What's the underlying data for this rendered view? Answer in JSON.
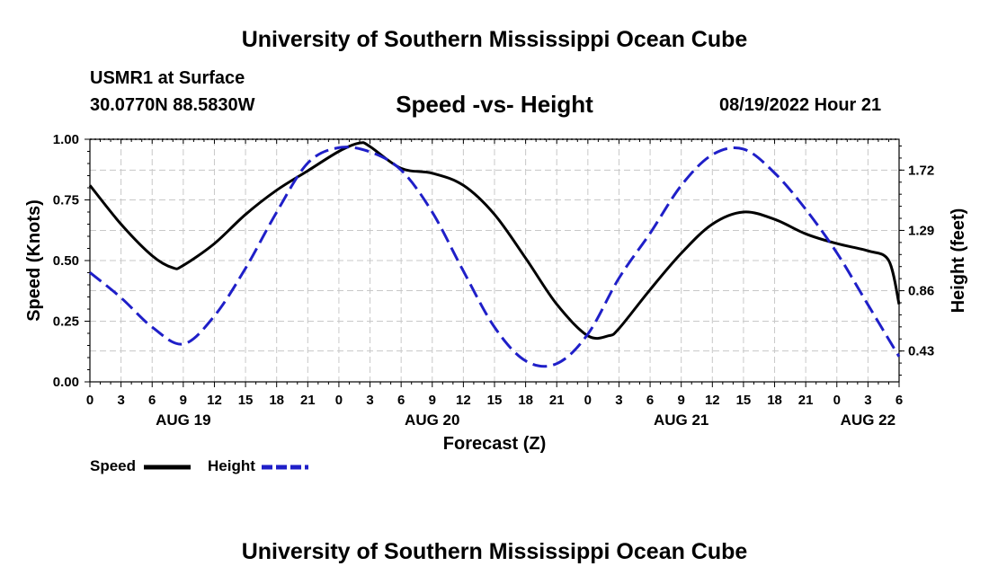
{
  "header": {
    "title": "University of Southern Mississippi Ocean Cube",
    "station": "USMR1 at Surface",
    "coordinates": "30.0770N  88.5830W",
    "subtitle": "Speed -vs- Height",
    "timestamp": "08/19/2022 Hour 21"
  },
  "footer": {
    "title": "University of Southern Mississippi Ocean Cube"
  },
  "legend": {
    "speed_label": "Speed",
    "height_label": "Height"
  },
  "chart_data": {
    "type": "line",
    "title": "Speed -vs- Height",
    "xlabel": "Forecast (Z)",
    "ylabel": "Speed (Knots)",
    "y2label": "Height (feet)",
    "ylim": [
      0,
      1
    ],
    "y2lim": [
      0.21,
      1.94
    ],
    "xlim": [
      0,
      78
    ],
    "grid": true,
    "legend_position": "bottom-left",
    "x_tick_labels": [
      "0",
      "3",
      "6",
      "9",
      "12",
      "15",
      "18",
      "21",
      "0",
      "3",
      "6",
      "9",
      "12",
      "15",
      "18",
      "21",
      "0",
      "3",
      "6",
      "9",
      "12",
      "15",
      "18",
      "21",
      "0",
      "3",
      "6"
    ],
    "y_ticks": [
      {
        "value": 0,
        "label": "0.00"
      },
      {
        "value": 0.25,
        "label": "0.25"
      },
      {
        "value": 0.5,
        "label": "0.50"
      },
      {
        "value": 0.75,
        "label": "0.75"
      },
      {
        "value": 1,
        "label": "1.00"
      }
    ],
    "y2_ticks": [
      {
        "value": 0.43,
        "label": "0.43"
      },
      {
        "value": 0.86,
        "label": "0.86"
      },
      {
        "value": 1.29,
        "label": "1.29"
      },
      {
        "value": 1.72,
        "label": "1.72"
      }
    ],
    "day_labels": [
      {
        "x": 9,
        "label": "AUG 19"
      },
      {
        "x": 33,
        "label": "AUG 20"
      },
      {
        "x": 57,
        "label": "AUG 21"
      },
      {
        "x": 75,
        "label": "AUG 22"
      }
    ],
    "series": [
      {
        "name": "Speed",
        "axis": "left",
        "color": "#000000",
        "style": "solid",
        "x": [
          0,
          3,
          6,
          8,
          9,
          12,
          15,
          18,
          21,
          24,
          26,
          27,
          30,
          33,
          36,
          39,
          42,
          45,
          48,
          50,
          51,
          54,
          57,
          60,
          63,
          66,
          69,
          72,
          75,
          77,
          78
        ],
        "values": [
          0.81,
          0.65,
          0.52,
          0.47,
          0.48,
          0.57,
          0.69,
          0.79,
          0.87,
          0.95,
          0.985,
          0.97,
          0.88,
          0.86,
          0.81,
          0.69,
          0.51,
          0.32,
          0.19,
          0.19,
          0.22,
          0.38,
          0.53,
          0.65,
          0.7,
          0.67,
          0.61,
          0.57,
          0.54,
          0.5,
          0.32
        ]
      },
      {
        "name": "Height",
        "axis": "right",
        "color": "#1f1fc8",
        "style": "dashed",
        "x": [
          0,
          3,
          6,
          9,
          12,
          15,
          18,
          21,
          24,
          27,
          30,
          33,
          36,
          39,
          42,
          45,
          48,
          51,
          54,
          57,
          60,
          63,
          66,
          69,
          72,
          75,
          78
        ],
        "values": [
          0.99,
          0.81,
          0.6,
          0.48,
          0.68,
          1.02,
          1.42,
          1.77,
          1.88,
          1.85,
          1.72,
          1.42,
          1.0,
          0.6,
          0.36,
          0.34,
          0.55,
          0.95,
          1.27,
          1.61,
          1.83,
          1.87,
          1.7,
          1.44,
          1.13,
          0.76,
          0.39
        ]
      }
    ]
  }
}
